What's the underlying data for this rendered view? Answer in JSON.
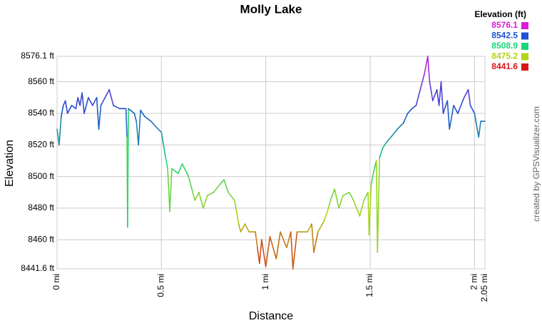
{
  "chart_data": {
    "type": "line",
    "title": "Molly Lake",
    "x_label": "Distance",
    "y_label": "Elevation",
    "credit": "created by GPSVisualizer.com",
    "legend": {
      "title": "Elevation (ft)",
      "items": [
        {
          "value": 8576.1,
          "color": "#d81ed8"
        },
        {
          "value": 8542.5,
          "color": "#1f50d0"
        },
        {
          "value": 8508.9,
          "color": "#19d678"
        },
        {
          "value": 8475.2,
          "color": "#b4d414"
        },
        {
          "value": 8441.6,
          "color": "#d81818"
        }
      ]
    },
    "xlim": [
      0,
      2.05
    ],
    "ylim": [
      8441.6,
      8576.1
    ],
    "xticks": [
      {
        "value": 0,
        "label": "0 mi"
      },
      {
        "value": 0.5,
        "label": "0.5 mi"
      },
      {
        "value": 1,
        "label": "1 mi"
      },
      {
        "value": 1.5,
        "label": "1.5 mi"
      },
      {
        "value": 2,
        "label": "2 mi"
      },
      {
        "value": 2.05,
        "label": "2.05 mi"
      }
    ],
    "yticks": [
      {
        "value": 8441.6,
        "label": "8441.6 ft"
      },
      {
        "value": 8460,
        "label": "8460 ft"
      },
      {
        "value": 8480,
        "label": "8480 ft"
      },
      {
        "value": 8500,
        "label": "8500 ft"
      },
      {
        "value": 8520,
        "label": "8520 ft"
      },
      {
        "value": 8540,
        "label": "8540 ft"
      },
      {
        "value": 8560,
        "label": "8560 ft"
      },
      {
        "value": 8576.1,
        "label": "8576.1 ft"
      }
    ],
    "grid": true,
    "x": [
      0,
      0.01,
      0.02,
      0.03,
      0.04,
      0.05,
      0.07,
      0.09,
      0.1,
      0.11,
      0.12,
      0.13,
      0.15,
      0.17,
      0.19,
      0.2,
      0.21,
      0.23,
      0.25,
      0.27,
      0.3,
      0.33,
      0.335,
      0.338,
      0.342,
      0.37,
      0.38,
      0.39,
      0.4,
      0.42,
      0.45,
      0.47,
      0.5,
      0.51,
      0.52,
      0.53,
      0.54,
      0.55,
      0.58,
      0.6,
      0.63,
      0.65,
      0.66,
      0.68,
      0.7,
      0.72,
      0.75,
      0.78,
      0.8,
      0.82,
      0.85,
      0.86,
      0.87,
      0.88,
      0.9,
      0.92,
      0.95,
      0.96,
      0.97,
      0.98,
      1.0,
      1.02,
      1.05,
      1.07,
      1.1,
      1.12,
      1.13,
      1.15,
      1.17,
      1.2,
      1.22,
      1.23,
      1.25,
      1.28,
      1.3,
      1.31,
      1.33,
      1.35,
      1.37,
      1.4,
      1.42,
      1.45,
      1.47,
      1.49,
      1.495,
      1.505,
      1.52,
      1.53,
      1.535,
      1.545,
      1.56,
      1.58,
      1.6,
      1.63,
      1.66,
      1.68,
      1.7,
      1.72,
      1.74,
      1.76,
      1.776,
      1.785,
      1.8,
      1.82,
      1.83,
      1.84,
      1.85,
      1.87,
      1.88,
      1.9,
      1.92,
      1.95,
      1.97,
      1.98,
      2.0,
      2.02,
      2.03,
      2.05
    ],
    "values": [
      8530,
      8520,
      8538,
      8545,
      8548,
      8540,
      8545,
      8543,
      8550,
      8545,
      8553,
      8540,
      8550,
      8545,
      8550,
      8530,
      8545,
      8550,
      8555,
      8545,
      8543,
      8543,
      8525,
      8468,
      8543,
      8540,
      8535,
      8520,
      8542,
      8538,
      8535,
      8532,
      8528,
      8520,
      8512,
      8505,
      8478,
      8505,
      8502,
      8508,
      8500,
      8490,
      8485,
      8490,
      8480,
      8488,
      8490,
      8495,
      8498,
      8490,
      8485,
      8478,
      8470,
      8465,
      8470,
      8465,
      8465,
      8455,
      8445,
      8460,
      8443,
      8462,
      8448,
      8465,
      8455,
      8465,
      8441.6,
      8465,
      8465,
      8465,
      8470,
      8452,
      8465,
      8472,
      8480,
      8485,
      8492,
      8480,
      8488,
      8490,
      8485,
      8475,
      8485,
      8490,
      8463,
      8495,
      8505,
      8510,
      8452,
      8512,
      8518,
      8522,
      8525,
      8530,
      8534,
      8540,
      8543,
      8545,
      8555,
      8565,
      8576.1,
      8560,
      8548,
      8555,
      8545,
      8560,
      8540,
      8548,
      8530,
      8545,
      8540,
      8550,
      8555,
      8545,
      8540,
      8525,
      8535,
      8535
    ]
  }
}
